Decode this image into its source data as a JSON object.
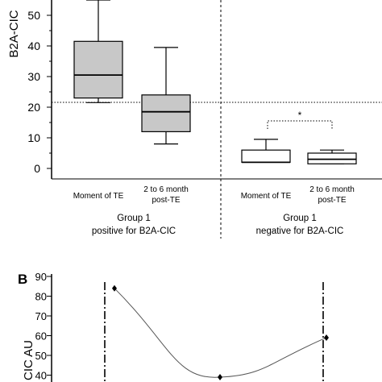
{
  "chart_data": [
    {
      "type": "box",
      "ylabel": "B2A-CIC",
      "ylim": [
        0,
        55
      ],
      "yticks": [
        0,
        10,
        20,
        30,
        40,
        50
      ],
      "threshold": 21.5,
      "boxes": [
        {
          "label_line1": "Moment of TE",
          "label_line2": "",
          "whisker_low": 21.5,
          "q1": 23,
          "median": 30.5,
          "q3": 41.5,
          "whisker_high": 55,
          "fill": "#c8c8c8"
        },
        {
          "label_line1": "2 to 6 month",
          "label_line2": "post-TE",
          "whisker_low": 8,
          "q1": 12,
          "median": 18.5,
          "q3": 24,
          "whisker_high": 39.5,
          "fill": "#c8c8c8"
        },
        {
          "label_line1": "Moment of TE",
          "label_line2": "",
          "whisker_low": 2,
          "q1": 2,
          "median": 2,
          "q3": 6,
          "whisker_high": 9.5,
          "fill": "#ffffff"
        },
        {
          "label_line1": "2 to 6 month",
          "label_line2": "post-TE",
          "whisker_low": 1.5,
          "q1": 1.5,
          "median": 3,
          "q3": 5,
          "whisker_high": 6,
          "fill": "#ffffff"
        }
      ],
      "groups": [
        {
          "line1": "Group 1",
          "line2": "positive for B2A-CIC"
        },
        {
          "line1": "Group 1",
          "line2": "negative for B2A-CIC"
        }
      ],
      "significance_marker": "*"
    },
    {
      "type": "line",
      "panel_label": "B",
      "ylabel": "CIC AU",
      "ylim": [
        40,
        90
      ],
      "yticks": [
        40,
        50,
        60,
        70,
        80,
        90
      ],
      "points": [
        {
          "x": 1,
          "y": 84
        },
        {
          "x": 2,
          "y": 39
        },
        {
          "x": 3,
          "y": 59
        }
      ]
    }
  ]
}
